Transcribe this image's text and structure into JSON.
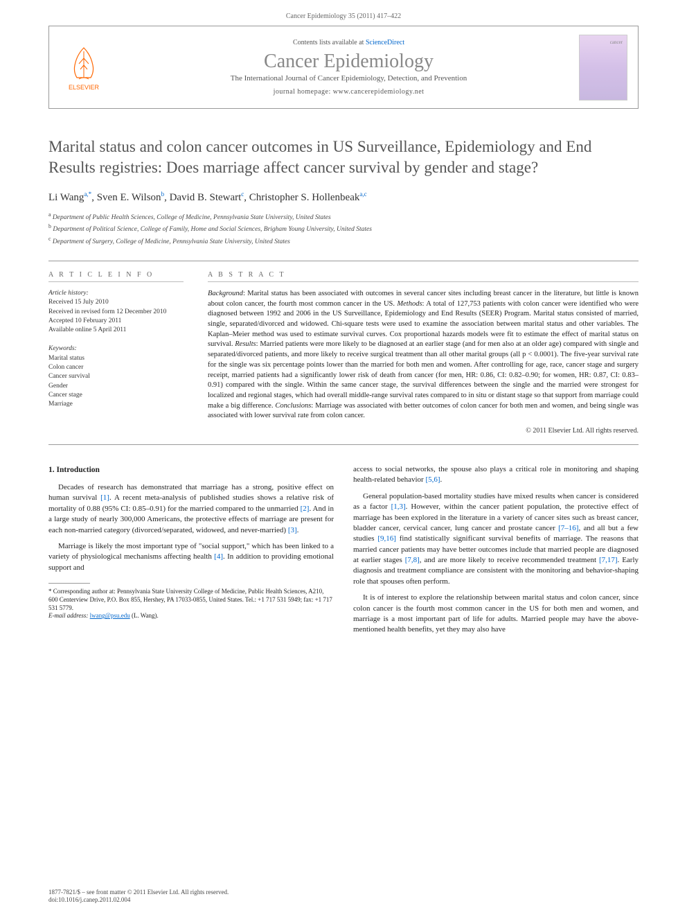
{
  "header": {
    "running_head": "Cancer Epidemiology 35 (2011) 417–422"
  },
  "masthead": {
    "contents_line_prefix": "Contents lists available at ",
    "contents_link": "ScienceDirect",
    "journal_name": "Cancer Epidemiology",
    "journal_subtitle": "The International Journal of Cancer Epidemiology, Detection, and Prevention",
    "homepage_label": "journal homepage: www.cancerepidemiology.net",
    "elsevier_label": "ELSEVIER"
  },
  "article": {
    "title": "Marital status and colon cancer outcomes in US Surveillance, Epidemiology and End Results registries: Does marriage affect cancer survival by gender and stage?",
    "authors_html": "Li Wang",
    "authors": [
      {
        "name": "Li Wang",
        "sup": "a,*"
      },
      {
        "name": "Sven E. Wilson",
        "sup": "b"
      },
      {
        "name": "David B. Stewart",
        "sup": "c"
      },
      {
        "name": "Christopher S. Hollenbeak",
        "sup": "a,c"
      }
    ],
    "affiliations": [
      {
        "sup": "a",
        "text": "Department of Public Health Sciences, College of Medicine, Pennsylvania State University, United States"
      },
      {
        "sup": "b",
        "text": "Department of Political Science, College of Family, Home and Social Sciences, Brigham Young University, United States"
      },
      {
        "sup": "c",
        "text": "Department of Surgery, College of Medicine, Pennsylvania State University, United States"
      }
    ]
  },
  "article_info": {
    "heading": "A R T I C L E   I N F O",
    "history_label": "Article history:",
    "history": [
      "Received 15 July 2010",
      "Received in revised form 12 December 2010",
      "Accepted 10 February 2011",
      "Available online 5 April 2011"
    ],
    "keywords_label": "Keywords:",
    "keywords": [
      "Marital status",
      "Colon cancer",
      "Cancer survival",
      "Gender",
      "Cancer stage",
      "Marriage"
    ]
  },
  "abstract": {
    "heading": "A B S T R A C T",
    "sections": {
      "background_label": "Background",
      "background": ": Marital status has been associated with outcomes in several cancer sites including breast cancer in the literature, but little is known about colon cancer, the fourth most common cancer in the US. ",
      "methods_label": "Methods",
      "methods": ": A total of 127,753 patients with colon cancer were identified who were diagnosed between 1992 and 2006 in the US Surveillance, Epidemiology and End Results (SEER) Program. Marital status consisted of married, single, separated/divorced and widowed. Chi-square tests were used to examine the association between marital status and other variables. The Kaplan–Meier method was used to estimate survival curves. Cox proportional hazards models were fit to estimate the effect of marital status on survival. ",
      "results_label": "Results",
      "results": ": Married patients were more likely to be diagnosed at an earlier stage (and for men also at an older age) compared with single and separated/divorced patients, and more likely to receive surgical treatment than all other marital groups (all p < 0.0001). The five-year survival rate for the single was six percentage points lower than the married for both men and women. After controlling for age, race, cancer stage and surgery receipt, married patients had a significantly lower risk of death from cancer (for men, HR: 0.86, CI: 0.82–0.90; for women, HR: 0.87, CI: 0.83–0.91) compared with the single. Within the same cancer stage, the survival differences between the single and the married were strongest for localized and regional stages, which had overall middle-range survival rates compared to in situ or distant stage so that support from marriage could make a big difference. ",
      "conclusions_label": "Conclusions",
      "conclusions": ": Marriage was associated with better outcomes of colon cancer for both men and women, and being single was associated with lower survival rate from colon cancer."
    },
    "copyright": "© 2011 Elsevier Ltd. All rights reserved."
  },
  "body": {
    "section1_heading": "1. Introduction",
    "col1_p1": "Decades of research has demonstrated that marriage has a strong, positive effect on human survival [1]. A recent meta-analysis of published studies shows a relative risk of mortality of 0.88 (95% CI: 0.85–0.91) for the married compared to the unmarried [2]. And in a large study of nearly 300,000 Americans, the protective effects of marriage are present for each non-married category (divorced/separated, widowed, and never-married) [3].",
    "col1_p2": "Marriage is likely the most important type of \"social support,\" which has been linked to a variety of physiological mechanisms affecting health [4]. In addition to providing emotional support and",
    "col2_p1": "access to social networks, the spouse also plays a critical role in monitoring and shaping health-related behavior [5,6].",
    "col2_p2": "General population-based mortality studies have mixed results when cancer is considered as a factor [1,3]. However, within the cancer patient population, the protective effect of marriage has been explored in the literature in a variety of cancer sites such as breast cancer, bladder cancer, cervical cancer, lung cancer and prostate cancer [7–16], and all but a few studies [9,16] find statistically significant survival benefits of marriage. The reasons that married cancer patients may have better outcomes include that married people are diagnosed at earlier stages [7,8], and are more likely to receive recommended treatment [7,17]. Early diagnosis and treatment compliance are consistent with the monitoring and behavior-shaping role that spouses often perform.",
    "col2_p3": "It is of interest to explore the relationship between marital status and colon cancer, since colon cancer is the fourth most common cancer in the US for both men and women, and marriage is a most important part of life for adults. Married people may have the above-mentioned health benefits, yet they may also have"
  },
  "footnote": {
    "corresponding": "* Corresponding author at: Pennsylvania State University College of Medicine, Public Health Sciences, A210, 600 Centerview Drive, P.O. Box 855, Hershey, PA 17033-0855, United States. Tel.: +1 717 531 5949; fax: +1 717 531 5779.",
    "email_label": "E-mail address:",
    "email": "lwang@psu.edu",
    "email_suffix": "(L. Wang)."
  },
  "footer": {
    "issn_line": "1877-7821/$ – see front matter © 2011 Elsevier Ltd. All rights reserved.",
    "doi": "doi:10.1016/j.canep.2011.02.004"
  },
  "colors": {
    "link": "#0066cc",
    "elsevier_orange": "#ff6600",
    "text": "#333333",
    "rule": "#999999",
    "heading_gray": "#666666"
  }
}
